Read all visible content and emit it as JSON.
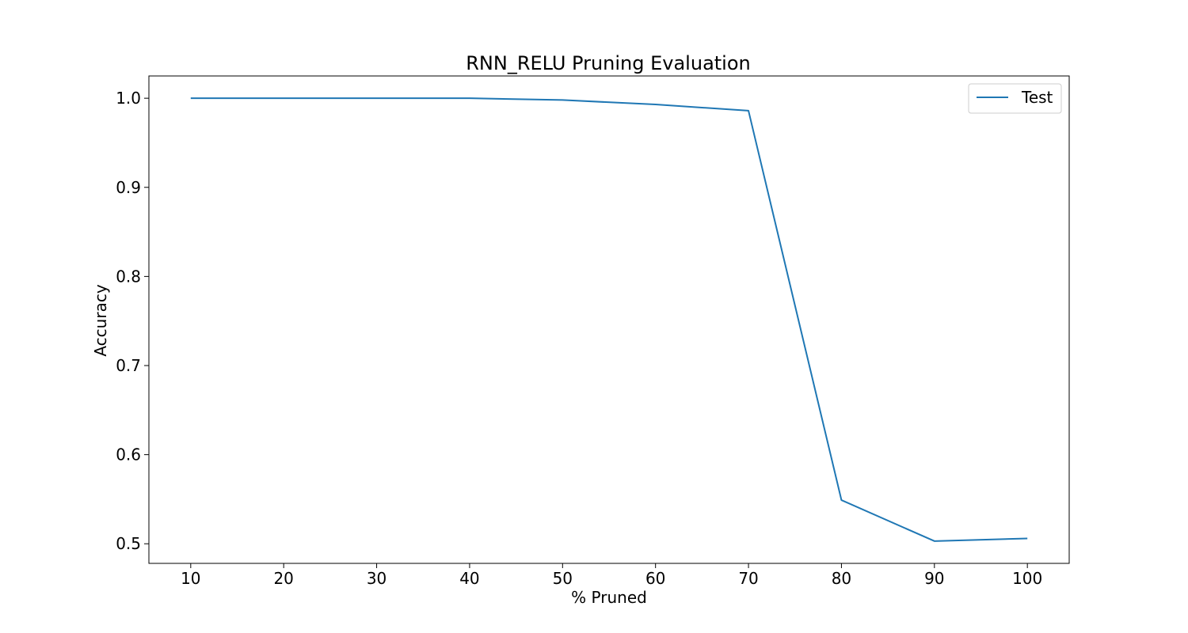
{
  "chart_data": {
    "type": "line",
    "title": "RNN_RELU Pruning Evaluation",
    "xlabel": "% Pruned",
    "ylabel": "Accuracy",
    "x": [
      10,
      20,
      30,
      40,
      50,
      60,
      70,
      80,
      90,
      100
    ],
    "series": [
      {
        "name": "Test",
        "color": "#1f77b4",
        "values": [
          1.0,
          1.0,
          1.0,
          1.0,
          0.998,
          0.993,
          0.986,
          0.549,
          0.503,
          0.506
        ]
      }
    ],
    "xlim": [
      5.5,
      104.5
    ],
    "ylim": [
      0.478,
      1.025
    ],
    "xticks": [
      10,
      20,
      30,
      40,
      50,
      60,
      70,
      80,
      90,
      100
    ],
    "xtick_labels": [
      "10",
      "20",
      "30",
      "40",
      "50",
      "60",
      "70",
      "80",
      "90",
      "100"
    ],
    "yticks": [
      0.5,
      0.6,
      0.7,
      0.8,
      0.9,
      1.0
    ],
    "ytick_labels": [
      "0.5",
      "0.6",
      "0.7",
      "0.8",
      "0.9",
      "1.0"
    ],
    "grid": false,
    "legend_position": "top-right"
  }
}
